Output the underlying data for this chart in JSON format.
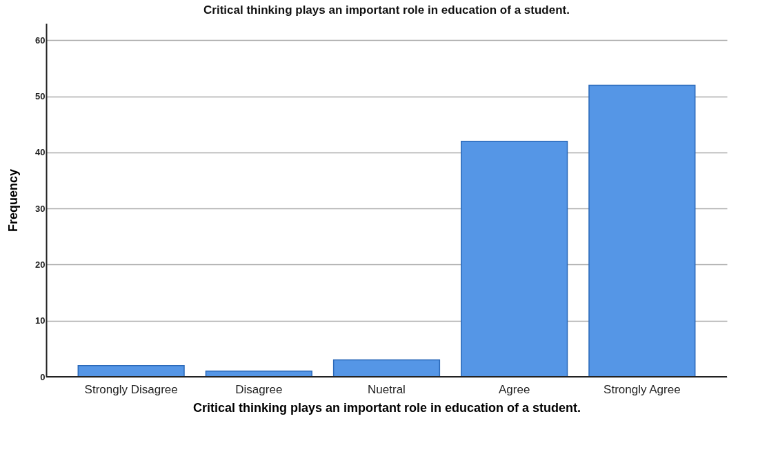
{
  "chart_data": {
    "type": "bar",
    "title": "Critical thinking plays an important role in education of a student.",
    "xlabel": "Critical thinking plays an important role in education of a student.",
    "ylabel": "Frequency",
    "categories": [
      "Strongly Disagree",
      "Disagree",
      "Nuetral",
      "Agree",
      "Strongly Agree"
    ],
    "values": [
      2,
      1,
      3,
      42,
      52
    ],
    "color": "#5596e6",
    "ylim": [
      0,
      63
    ],
    "yticks": [
      0,
      10,
      20,
      30,
      40,
      50,
      60
    ],
    "grid": "y"
  }
}
